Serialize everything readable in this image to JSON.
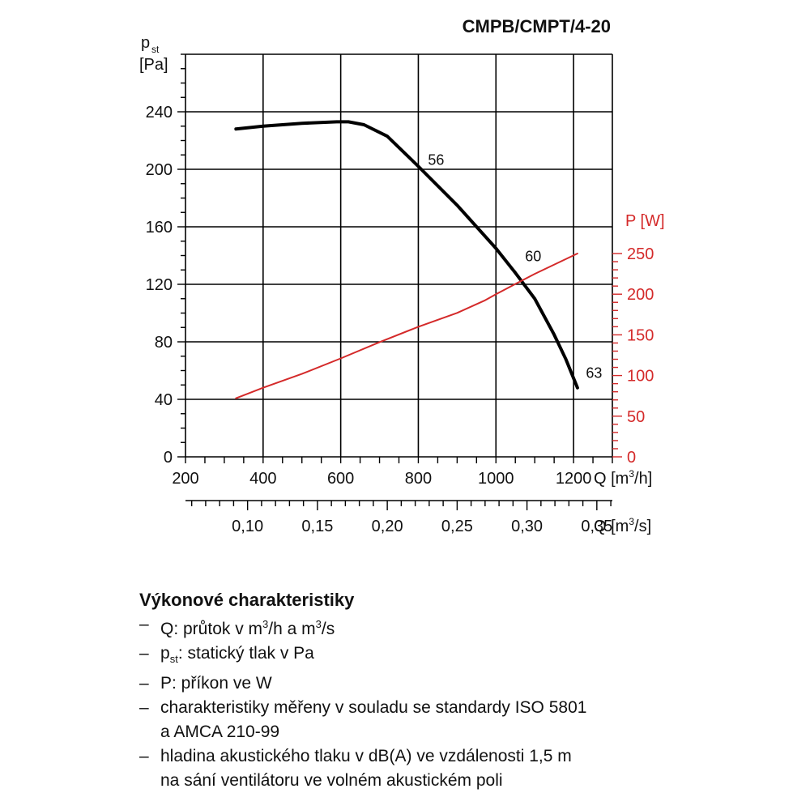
{
  "chart_data": {
    "type": "line",
    "title": "CMPB/CMPT/4-20",
    "y_left": {
      "label_main": "p",
      "label_sub": "st",
      "unit": "[Pa]",
      "range": [
        0,
        280
      ],
      "ticks": [
        0,
        40,
        80,
        120,
        160,
        200,
        240
      ],
      "minor_step": 10
    },
    "y_right": {
      "label": "P [W]",
      "range": [
        0,
        250
      ],
      "ticks": [
        0,
        50,
        100,
        150,
        200,
        250
      ],
      "minor_step": 10,
      "color": "#d42a2a"
    },
    "x_top": {
      "label_main": "Q [m",
      "label_sup": "3",
      "label_end": "/h]",
      "range": [
        200,
        1300
      ],
      "ticks": [
        200,
        400,
        600,
        800,
        1000,
        1200
      ],
      "tick_labels": [
        "200",
        "400",
        "600",
        "800",
        "1000",
        "1200"
      ],
      "minor_step": 50
    },
    "x_bottom": {
      "label_main": "Q [m",
      "label_sup": "3",
      "label_end": "/s]",
      "ticks": [
        0.1,
        0.15,
        0.2,
        0.25,
        0.3,
        0.35
      ],
      "tick_labels": [
        "0,10",
        "0,15",
        "0,20",
        "0,25",
        "0,30",
        "0,35"
      ],
      "minor_step": 0.01
    },
    "grid": true,
    "series": [
      {
        "axis": "left",
        "color": "#000000",
        "x": [
          330,
          400,
          500,
          590,
          620,
          660,
          720,
          800,
          900,
          1000,
          1050,
          1100,
          1150,
          1180,
          1210
        ],
        "y": [
          228,
          230,
          232,
          233,
          233,
          231,
          223,
          202,
          175,
          145,
          128,
          110,
          85,
          68,
          48
        ]
      },
      {
        "axis": "right",
        "color": "#d42a2a",
        "x": [
          330,
          400,
          500,
          600,
          700,
          800,
          900,
          970,
          1000,
          1100,
          1210
        ],
        "y": [
          72,
          85,
          102,
          121,
          141,
          160,
          177,
          192,
          200,
          225,
          250
        ]
      }
    ],
    "annotations": [
      {
        "text": "56",
        "x": 825,
        "y": 203
      },
      {
        "text": "60",
        "x": 1075,
        "y": 136
      },
      {
        "text": "63",
        "x": 1232,
        "y": 55
      }
    ]
  },
  "legend": {
    "title": "Výkonové charakteristiky",
    "items": [
      {
        "dash": "–",
        "text": "Q: průtok v m",
        "sup": "3",
        "text2": "/h a m",
        "sup2": "3",
        "text3": "/s"
      },
      {
        "dash": "–",
        "text": "p",
        "sub": "st",
        "text2": ": statický tlak v Pa"
      },
      {
        "dash": "–",
        "text": "P: příkon ve W"
      },
      {
        "dash": "–",
        "text": "charakteristiky měřeny v souladu se standardy ISO 5801"
      },
      {
        "dash": "",
        "text": "a AMCA 210-99"
      },
      {
        "dash": "–",
        "text": "hladina akustického tlaku v dB(A) ve vzdálenosti 1,5 m"
      },
      {
        "dash": "",
        "text": "na sání ventilátoru ve volném akustickém poli"
      }
    ]
  }
}
